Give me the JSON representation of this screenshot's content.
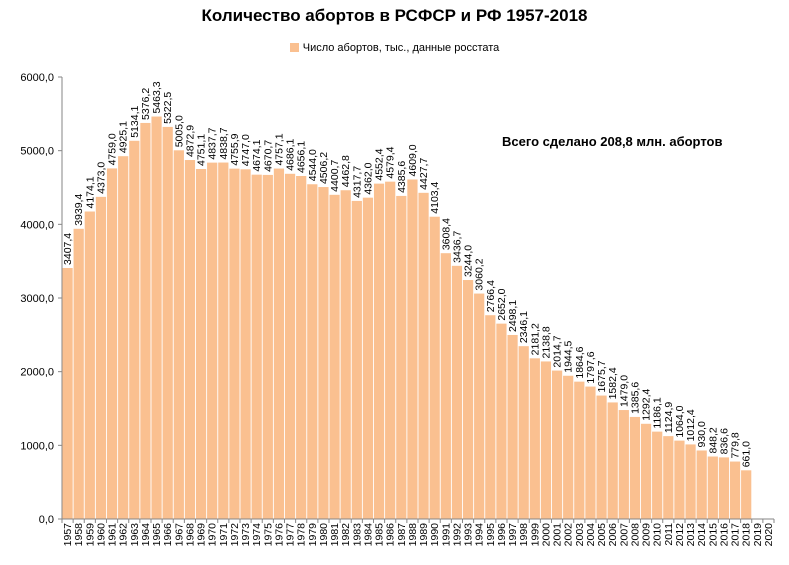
{
  "chart_data": {
    "type": "bar",
    "title": "Количество абортов в РСФСР и РФ 1957-2018",
    "annotation": "Всего сделано 208,8 млн. абортов",
    "legend": {
      "position": "top",
      "label": "Число абортов, тыс., данные росстата"
    },
    "series": [
      {
        "name": "Число абортов, тыс., данные росстата",
        "color": "#FAC090"
      }
    ],
    "categories": [
      "1957",
      "1958",
      "1959",
      "1960",
      "1961",
      "1962",
      "1963",
      "1964",
      "1965",
      "1966",
      "1967",
      "1968",
      "1969",
      "1970",
      "1971",
      "1972",
      "1973",
      "1974",
      "1975",
      "1976",
      "1977",
      "1978",
      "1979",
      "1980",
      "1981",
      "1982",
      "1983",
      "1984",
      "1985",
      "1986",
      "1987",
      "1988",
      "1989",
      "1990",
      "1991",
      "1992",
      "1993",
      "1994",
      "1995",
      "1996",
      "1997",
      "1998",
      "1999",
      "2000",
      "2001",
      "2002",
      "2003",
      "2004",
      "2005",
      "2006",
      "2007",
      "2008",
      "2009",
      "2010",
      "2011",
      "2012",
      "2013",
      "2014",
      "2015",
      "2016",
      "2017",
      "2018",
      "2019",
      "2020"
    ],
    "values": [
      3407.4,
      3939.4,
      4174.1,
      4373.0,
      4759.0,
      4925.1,
      5134.1,
      5376.2,
      5463.3,
      5322.5,
      5005.0,
      4872.9,
      4751.1,
      4837.7,
      4838.7,
      4755.9,
      4747.0,
      4674.1,
      4670.7,
      4757.1,
      4686.1,
      4656.1,
      4544.0,
      4506.2,
      4400.7,
      4462.8,
      4317.7,
      4362.0,
      4552.4,
      4579.4,
      4385.6,
      4609.0,
      4427.7,
      4103.4,
      3608.4,
      3436.7,
      3244.0,
      3060.2,
      2766.4,
      2652.0,
      2498.1,
      2346.1,
      2181.2,
      2138.8,
      2014.7,
      1944.5,
      1864.6,
      1797.6,
      1675.7,
      1582.4,
      1479.0,
      1385.6,
      1292.4,
      1186.1,
      1124.9,
      1064.0,
      1012.4,
      930.0,
      848.2,
      836.6,
      779.8,
      661.0,
      null,
      null
    ],
    "labels": [
      "3407,4",
      "3939,4",
      "4174,1",
      "4373,0",
      "4759,0",
      "4925,1",
      "5134,1",
      "5376,2",
      "5463,3",
      "5322,5",
      "5005,0",
      "4872,9",
      "4751,1",
      "4837,7",
      "4838,7",
      "4755,9",
      "4747,0",
      "4674,1",
      "4670,7",
      "4757,1",
      "4686,1",
      "4656,1",
      "4544,0",
      "4506,2",
      "4400,7",
      "4462,8",
      "4317,7",
      "4362,0",
      "4552,4",
      "4579,4",
      "4385,6",
      "4609,0",
      "4427,7",
      "4103,4",
      "3608,4",
      "3436,7",
      "3244,0",
      "3060,2",
      "2766,4",
      "2652,0",
      "2498,1",
      "2346,1",
      "2181,2",
      "2138,8",
      "2014,7",
      "1944,5",
      "1864,6",
      "1797,6",
      "1675,7",
      "1582,4",
      "1479,0",
      "1385,6",
      "1292,4",
      "1186,1",
      "1124,9",
      "1064,0",
      "1012,4",
      "930,0",
      "848,2",
      "836,6",
      "779,8",
      "661,0",
      "",
      ""
    ],
    "yticks": [
      "0,0",
      "1000,0",
      "2000,0",
      "3000,0",
      "4000,0",
      "5000,0",
      "6000,0"
    ],
    "ylim": [
      0,
      6000
    ],
    "grid": false,
    "xlabel": "",
    "ylabel": ""
  }
}
